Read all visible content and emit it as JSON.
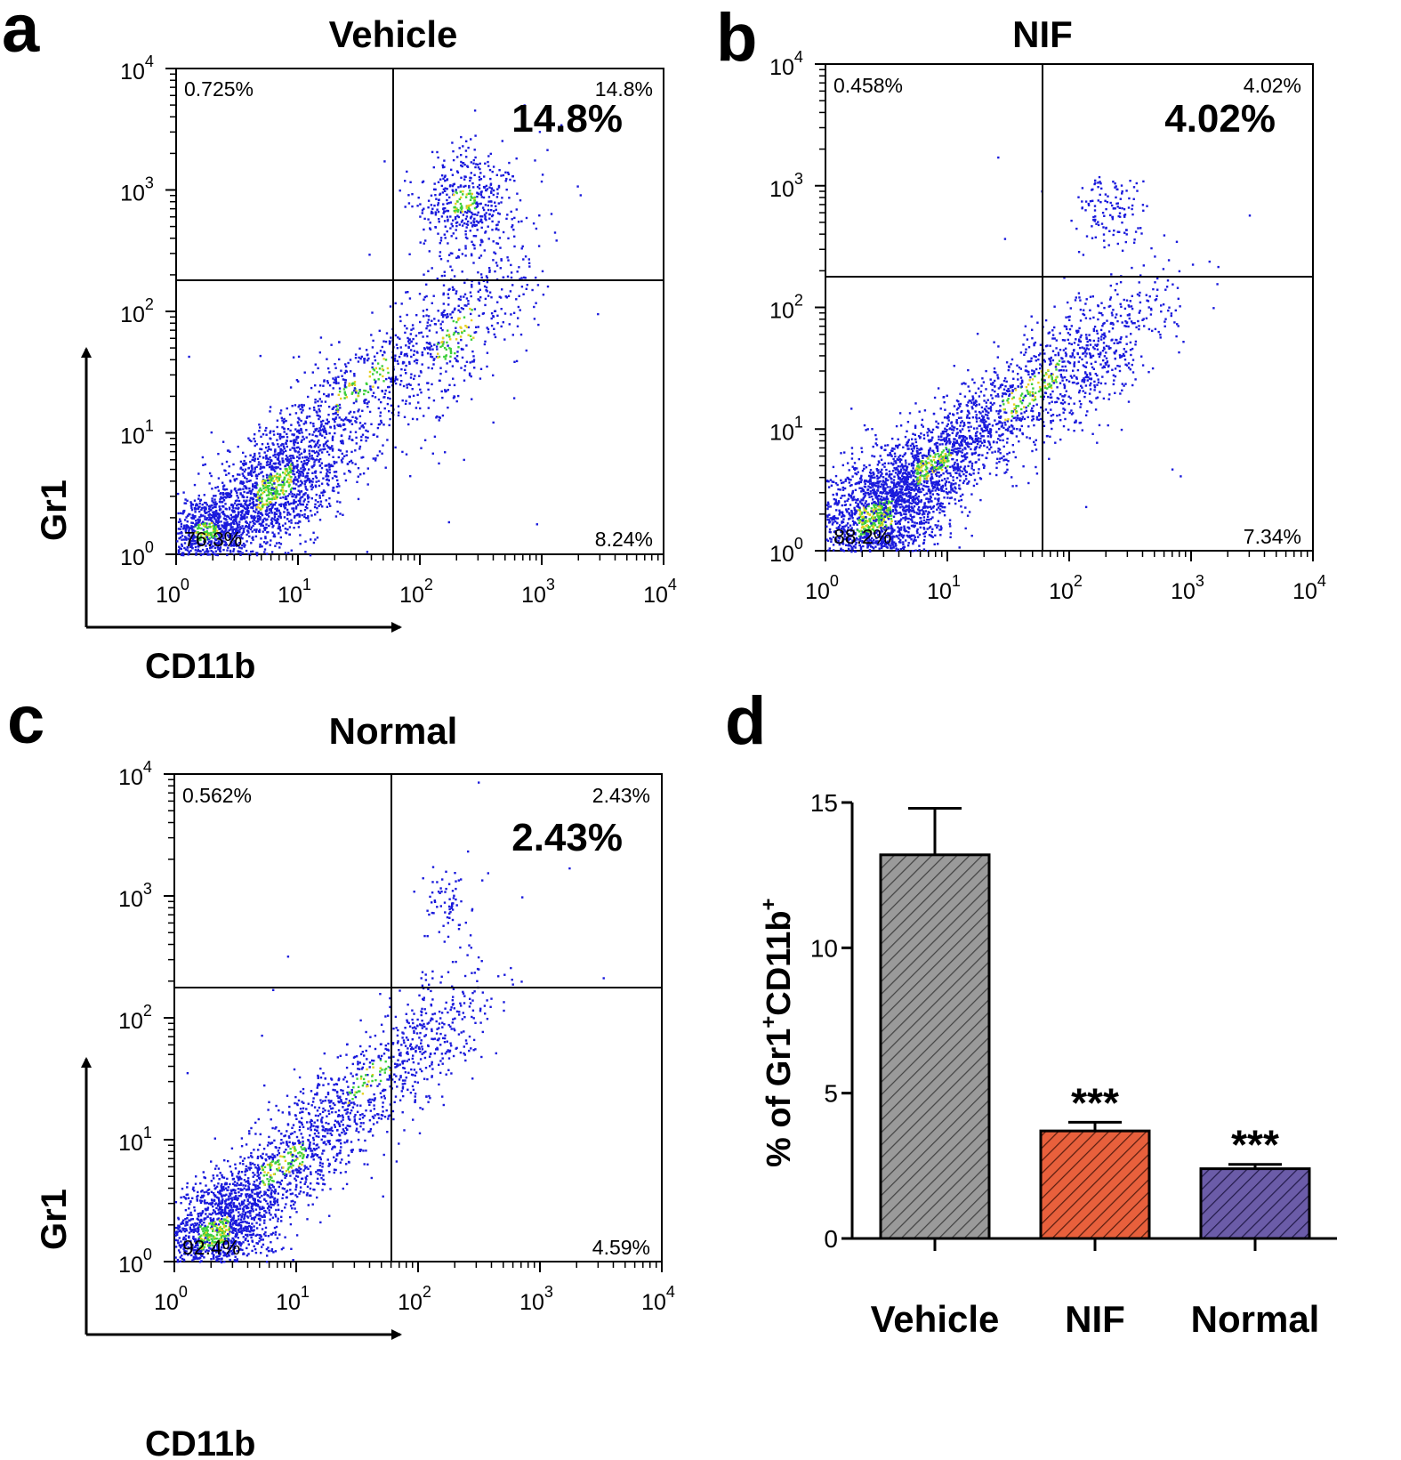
{
  "figure": {
    "panels": [
      {
        "letter": "a",
        "title": "Vehicle",
        "quadrants": {
          "ul": "0.725%",
          "ur": "14.8%",
          "ll": "76.3%",
          "lr": "8.24%"
        },
        "highlight": "14.8%",
        "x_axis_label": "CD11b",
        "y_axis_label": "Gr1"
      },
      {
        "letter": "b",
        "title": "NIF",
        "quadrants": {
          "ul": "0.458%",
          "ur": "4.02%",
          "ll": "88.2%",
          "lr": "7.34%"
        },
        "highlight": "4.02%"
      },
      {
        "letter": "c",
        "title": "Normal",
        "quadrants": {
          "ul": "0.562%",
          "ur": "2.43%",
          "ll": "92.4%",
          "lr": "4.59%"
        },
        "highlight": "2.43%",
        "x_axis_label": "CD11b",
        "y_axis_label": "Gr1"
      }
    ],
    "bar_panel_letter": "d",
    "flow_axis_ticks": {
      "base": "10",
      "exponents": [
        "0",
        "1",
        "2",
        "3",
        "4"
      ]
    }
  },
  "colors": {
    "vehicle": "#9a9a9a",
    "nif": "#e8603c",
    "normal": "#6b5ca8",
    "dots": "#1a1adc",
    "dense_green": "#3ccf3c",
    "dense_yellow": "#e6d020"
  },
  "chart_data": [
    {
      "type": "scatter",
      "title": "Vehicle",
      "xlabel": "CD11b",
      "ylabel": "Gr1",
      "x_scale": "log",
      "y_scale": "log",
      "xlim": [
        1,
        10000
      ],
      "ylim": [
        1,
        10000
      ],
      "gate": {
        "x": 60,
        "y": 180
      },
      "quadrant_percent": {
        "upper_left": 0.725,
        "upper_right": 14.8,
        "lower_left": 76.3,
        "lower_right": 8.24
      }
    },
    {
      "type": "scatter",
      "title": "NIF",
      "xlabel": "CD11b",
      "ylabel": "Gr1",
      "x_scale": "log",
      "y_scale": "log",
      "xlim": [
        1,
        10000
      ],
      "ylim": [
        1,
        10000
      ],
      "gate": {
        "x": 60,
        "y": 180
      },
      "quadrant_percent": {
        "upper_left": 0.458,
        "upper_right": 4.02,
        "lower_left": 88.2,
        "lower_right": 7.34
      }
    },
    {
      "type": "scatter",
      "title": "Normal",
      "xlabel": "CD11b",
      "ylabel": "Gr1",
      "x_scale": "log",
      "y_scale": "log",
      "xlim": [
        1,
        10000
      ],
      "ylim": [
        1,
        10000
      ],
      "gate": {
        "x": 60,
        "y": 180
      },
      "quadrant_percent": {
        "upper_left": 0.562,
        "upper_right": 2.43,
        "lower_left": 92.4,
        "lower_right": 4.59
      }
    },
    {
      "type": "bar",
      "title": "",
      "categories": [
        "Vehicle",
        "NIF",
        "Normal"
      ],
      "values": [
        13.2,
        3.7,
        2.4
      ],
      "errors": [
        1.6,
        0.3,
        0.15
      ],
      "significance": [
        "",
        "***",
        "***"
      ],
      "xlabel": "",
      "ylabel": "% of Gr1+CD11b+",
      "ylabel_main": "% of Gr1",
      "ylabel_sup1": "+",
      "ylabel_mid": "CD11b",
      "ylabel_sup2": "+",
      "ylim": [
        0,
        15
      ],
      "yticks": [
        "0",
        "5",
        "10",
        "15"
      ]
    }
  ]
}
